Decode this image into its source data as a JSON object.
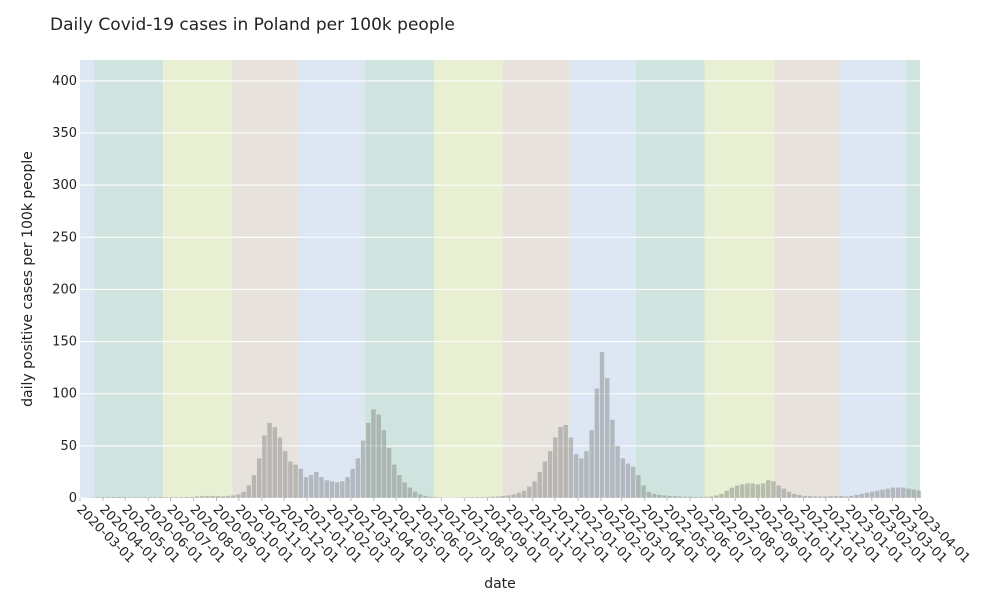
{
  "chart_data": {
    "type": "bar",
    "title": "Daily Covid-19 cases in Poland per 100k people",
    "xlabel": "date",
    "ylabel": "daily positive cases per 100k people",
    "x": [
      "2020-03-01",
      "2020-03-08",
      "2020-03-15",
      "2020-03-22",
      "2020-03-29",
      "2020-04-05",
      "2020-04-12",
      "2020-04-19",
      "2020-04-26",
      "2020-05-03",
      "2020-05-10",
      "2020-05-17",
      "2020-05-24",
      "2020-05-31",
      "2020-06-07",
      "2020-06-14",
      "2020-06-21",
      "2020-06-28",
      "2020-07-05",
      "2020-07-12",
      "2020-07-19",
      "2020-07-26",
      "2020-08-02",
      "2020-08-09",
      "2020-08-16",
      "2020-08-23",
      "2020-08-30",
      "2020-09-06",
      "2020-09-13",
      "2020-09-20",
      "2020-09-27",
      "2020-10-04",
      "2020-10-11",
      "2020-10-18",
      "2020-10-25",
      "2020-11-01",
      "2020-11-08",
      "2020-11-15",
      "2020-11-22",
      "2020-11-29",
      "2020-12-06",
      "2020-12-13",
      "2020-12-20",
      "2020-12-27",
      "2021-01-03",
      "2021-01-10",
      "2021-01-17",
      "2021-01-24",
      "2021-01-31",
      "2021-02-07",
      "2021-02-14",
      "2021-02-21",
      "2021-02-28",
      "2021-03-07",
      "2021-03-14",
      "2021-03-21",
      "2021-03-28",
      "2021-04-04",
      "2021-04-11",
      "2021-04-18",
      "2021-04-25",
      "2021-05-02",
      "2021-05-09",
      "2021-05-16",
      "2021-05-23",
      "2021-05-30",
      "2021-06-06",
      "2021-06-13",
      "2021-06-20",
      "2021-06-27",
      "2021-07-04",
      "2021-07-11",
      "2021-07-18",
      "2021-07-25",
      "2021-08-01",
      "2021-08-08",
      "2021-08-15",
      "2021-08-22",
      "2021-08-29",
      "2021-09-05",
      "2021-09-12",
      "2021-09-19",
      "2021-09-26",
      "2021-10-03",
      "2021-10-10",
      "2021-10-17",
      "2021-10-24",
      "2021-10-31",
      "2021-11-07",
      "2021-11-14",
      "2021-11-21",
      "2021-11-28",
      "2021-12-05",
      "2021-12-12",
      "2021-12-19",
      "2021-12-26",
      "2022-01-02",
      "2022-01-09",
      "2022-01-16",
      "2022-01-23",
      "2022-01-30",
      "2022-02-06",
      "2022-02-13",
      "2022-02-20",
      "2022-02-27",
      "2022-03-06",
      "2022-03-13",
      "2022-03-20",
      "2022-03-27",
      "2022-04-03",
      "2022-04-10",
      "2022-04-17",
      "2022-04-24",
      "2022-05-01",
      "2022-05-08",
      "2022-05-15",
      "2022-05-22",
      "2022-05-29",
      "2022-06-05",
      "2022-06-12",
      "2022-06-19",
      "2022-06-26",
      "2022-07-03",
      "2022-07-10",
      "2022-07-17",
      "2022-07-24",
      "2022-07-31",
      "2022-08-07",
      "2022-08-14",
      "2022-08-21",
      "2022-08-28",
      "2022-09-04",
      "2022-09-11",
      "2022-09-18",
      "2022-09-25",
      "2022-10-02",
      "2022-10-09",
      "2022-10-16",
      "2022-10-23",
      "2022-10-30",
      "2022-11-06",
      "2022-11-13",
      "2022-11-20",
      "2022-11-27",
      "2022-12-04",
      "2022-12-11",
      "2022-12-18",
      "2022-12-25",
      "2023-01-01",
      "2023-01-08",
      "2023-01-15",
      "2023-01-22",
      "2023-01-29",
      "2023-02-05",
      "2023-02-12",
      "2023-02-19",
      "2023-02-26",
      "2023-03-05",
      "2023-03-12",
      "2023-03-19",
      "2023-03-26",
      "2023-04-02"
    ],
    "values": [
      0.1,
      0.2,
      0.5,
      0.7,
      0.8,
      0.9,
      1,
      0.9,
      0.8,
      0.8,
      0.7,
      0.7,
      0.9,
      0.8,
      0.9,
      1,
      0.8,
      0.8,
      0.7,
      0.8,
      0.9,
      1,
      1.5,
      1.8,
      2,
      2,
      1.8,
      1.6,
      2,
      2.5,
      3.5,
      6,
      12,
      22,
      38,
      60,
      72,
      68,
      58,
      45,
      35,
      32,
      28,
      20,
      22,
      25,
      20,
      17,
      16,
      15,
      16,
      20,
      28,
      38,
      55,
      72,
      85,
      80,
      65,
      48,
      32,
      22,
      15,
      10,
      6,
      3.5,
      2,
      1.2,
      0.8,
      0.5,
      0.3,
      0.3,
      0.4,
      0.5,
      0.6,
      0.7,
      0.8,
      0.9,
      1,
      1.2,
      1.5,
      2,
      2.5,
      3.5,
      5,
      7,
      11,
      16,
      25,
      35,
      45,
      58,
      68,
      70,
      58,
      42,
      38,
      45,
      65,
      105,
      140,
      115,
      75,
      50,
      38,
      33,
      30,
      22,
      12,
      6,
      4,
      3,
      2.5,
      2,
      1.8,
      1.5,
      1.3,
      1.2,
      1,
      1,
      1.2,
      1.5,
      2.5,
      4,
      7,
      10,
      12,
      13,
      14,
      14,
      13,
      14,
      17,
      16,
      12,
      9,
      6,
      4,
      3,
      2,
      1.8,
      1.6,
      1.5,
      1.5,
      1.6,
      1.8,
      2,
      1.5,
      2,
      3,
      4,
      5,
      6,
      7,
      8,
      9,
      10,
      10,
      10,
      9,
      8,
      7
    ],
    "color": "#7f7f7f",
    "xlim": [
      "2020-03-01",
      "2023-04-07"
    ],
    "xticks": [
      "2020-03-01",
      "2020-04-01",
      "2020-05-01",
      "2020-06-01",
      "2020-07-01",
      "2020-08-01",
      "2020-09-01",
      "2020-10-01",
      "2020-11-01",
      "2020-12-01",
      "2021-01-01",
      "2021-02-01",
      "2021-03-01",
      "2021-04-01",
      "2021-05-01",
      "2021-06-01",
      "2021-07-01",
      "2021-08-01",
      "2021-09-01",
      "2021-10-01",
      "2021-11-01",
      "2021-12-01",
      "2022-01-01",
      "2022-02-01",
      "2022-03-01",
      "2022-04-01",
      "2022-05-01",
      "2022-06-01",
      "2022-07-01",
      "2022-08-01",
      "2022-09-01",
      "2022-10-01",
      "2022-11-01",
      "2022-12-01",
      "2023-01-01",
      "2023-02-01",
      "2023-03-01",
      "2023-04-01"
    ],
    "ylim": [
      0,
      420
    ],
    "yticks": [
      0,
      50,
      100,
      150,
      200,
      250,
      300,
      350,
      400
    ],
    "grid": true,
    "season_bands": [
      {
        "start": "2020-03-01",
        "end": "2020-03-20",
        "color": "#dce7f3"
      },
      {
        "start": "2020-03-20",
        "end": "2020-06-21",
        "color": "#cfe3df"
      },
      {
        "start": "2020-06-21",
        "end": "2020-09-22",
        "color": "#e8efd3"
      },
      {
        "start": "2020-09-22",
        "end": "2020-12-21",
        "color": "#e7e3dc"
      },
      {
        "start": "2020-12-21",
        "end": "2021-03-20",
        "color": "#dce7f3"
      },
      {
        "start": "2021-03-20",
        "end": "2021-06-21",
        "color": "#cfe3df"
      },
      {
        "start": "2021-06-21",
        "end": "2021-09-22",
        "color": "#e8efd3"
      },
      {
        "start": "2021-09-22",
        "end": "2021-12-21",
        "color": "#e7e3dc"
      },
      {
        "start": "2021-12-21",
        "end": "2022-03-20",
        "color": "#dce7f3"
      },
      {
        "start": "2022-03-20",
        "end": "2022-06-21",
        "color": "#cfe3df"
      },
      {
        "start": "2022-06-21",
        "end": "2022-09-23",
        "color": "#e8efd3"
      },
      {
        "start": "2022-09-23",
        "end": "2022-12-21",
        "color": "#e7e3dc"
      },
      {
        "start": "2022-12-21",
        "end": "2023-03-20",
        "color": "#dce7f3"
      },
      {
        "start": "2023-03-20",
        "end": "2023-04-07",
        "color": "#cfe3df"
      }
    ]
  }
}
